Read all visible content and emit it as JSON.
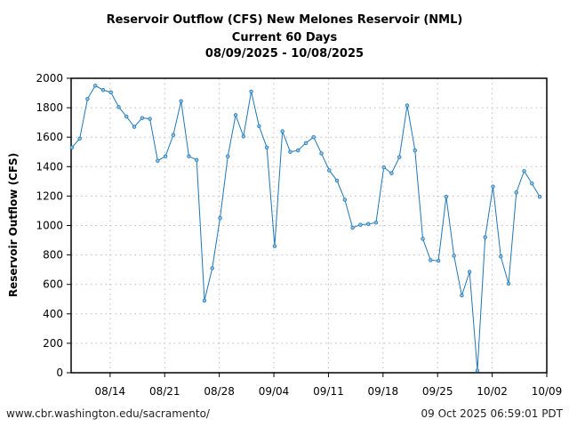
{
  "chart_data": {
    "type": "line",
    "title": [
      "Reservoir Outflow (CFS) New Melones Reservoir (NML)",
      "Current 60 Days",
      "08/09/2025 - 10/08/2025"
    ],
    "xlabel": "",
    "ylabel": "Reservoir Outflow (CFS)",
    "ylim": [
      0,
      2000
    ],
    "yticks": [
      0,
      200,
      400,
      600,
      800,
      1000,
      1200,
      1400,
      1600,
      1800,
      2000
    ],
    "xlim_days": [
      0,
      61
    ],
    "xticks": [
      {
        "day": 5,
        "label": "08/14"
      },
      {
        "day": 12,
        "label": "08/21"
      },
      {
        "day": 19,
        "label": "08/28"
      },
      {
        "day": 26,
        "label": "09/04"
      },
      {
        "day": 33,
        "label": "09/11"
      },
      {
        "day": 40,
        "label": "09/18"
      },
      {
        "day": 47,
        "label": "09/25"
      },
      {
        "day": 54,
        "label": "10/02"
      },
      {
        "day": 61,
        "label": "10/09"
      }
    ],
    "grid": true,
    "series": [
      {
        "name": "Outflow",
        "color": "#1f77b4",
        "start_date": "08/09/2025",
        "values": [
          1530,
          1590,
          1860,
          1950,
          1920,
          1905,
          1805,
          1740,
          1670,
          1730,
          1725,
          1440,
          1470,
          1615,
          1845,
          1470,
          1445,
          490,
          710,
          1050,
          1470,
          1750,
          1605,
          1910,
          1675,
          1530,
          860,
          1640,
          1500,
          1510,
          1560,
          1600,
          1490,
          1375,
          1305,
          1175,
          985,
          1005,
          1010,
          1020,
          1395,
          1355,
          1465,
          1815,
          1510,
          910,
          765,
          760,
          1195,
          795,
          525,
          685,
          15,
          920,
          1265,
          790,
          605,
          1225,
          1370,
          1285,
          1195
        ]
      }
    ]
  },
  "footer": {
    "source": "www.cbr.washington.edu/sacramento/",
    "timestamp": "09 Oct 2025 06:59:01 PDT"
  }
}
